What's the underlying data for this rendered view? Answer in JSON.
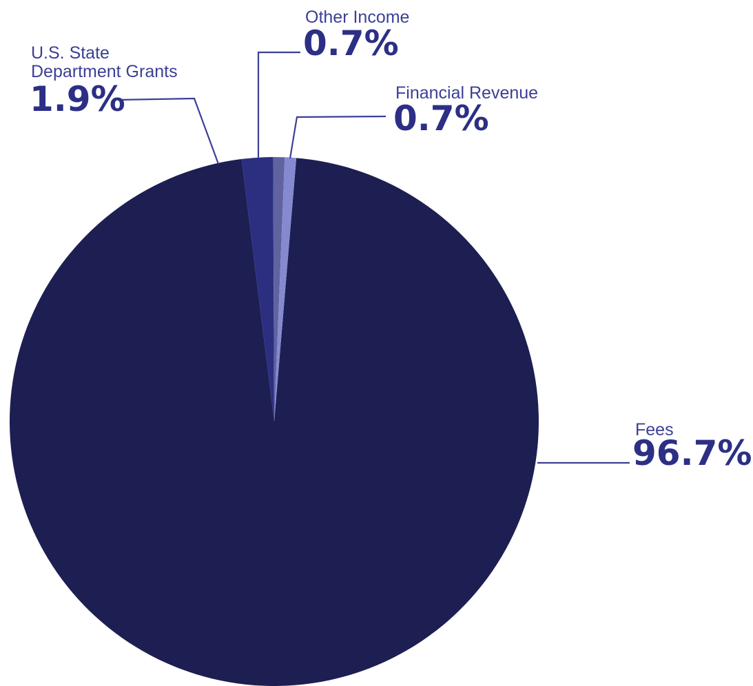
{
  "chart_data": {
    "type": "pie",
    "slices": [
      {
        "name": "Fees",
        "value": 96.7,
        "label": "96.7%",
        "color": "#1d1e52"
      },
      {
        "name": "U.S. State Department Grants",
        "name_lines": [
          "U.S. State",
          "Department Grants"
        ],
        "value": 1.9,
        "label": "1.9%",
        "color": "#2c2f80"
      },
      {
        "name": "Other Income",
        "value": 0.7,
        "label": "0.7%",
        "color": "#60639f"
      },
      {
        "name": "Financial Revenue",
        "value": 0.7,
        "label": "0.7%",
        "color": "#8589d0"
      }
    ],
    "title": "",
    "legend": "none",
    "label_color": "#3b3f95"
  }
}
